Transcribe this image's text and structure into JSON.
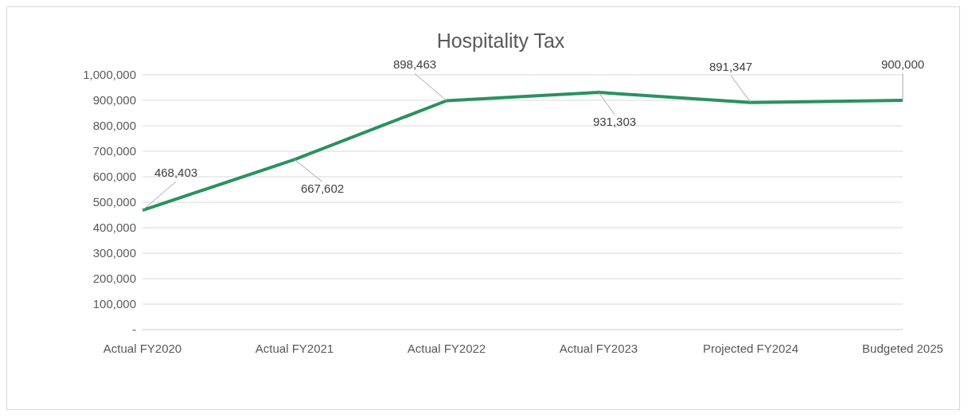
{
  "chart_data": {
    "type": "line",
    "title": "Hospitality Tax",
    "categories": [
      "Actual FY2020",
      "Actual FY2021",
      "Actual FY2022",
      "Actual FY2023",
      "Projected FY2024",
      "Budgeted 2025"
    ],
    "series": [
      {
        "color": "#2a9160",
        "values": [
          468403,
          667602,
          898463,
          931303,
          891347,
          900000
        ],
        "value_labels": [
          "468,403",
          "667,602",
          "898,463",
          "931,303",
          "891,347",
          "900,000"
        ]
      }
    ],
    "ylim": [
      0,
      1000000
    ],
    "yticks": [
      {
        "value": 0,
        "label": "-"
      },
      {
        "value": 100000,
        "label": "100,000"
      },
      {
        "value": 200000,
        "label": "200,000"
      },
      {
        "value": 300000,
        "label": "300,000"
      },
      {
        "value": 400000,
        "label": "400,000"
      },
      {
        "value": 500000,
        "label": "500,000"
      },
      {
        "value": 600000,
        "label": "600,000"
      },
      {
        "value": 700000,
        "label": "700,000"
      },
      {
        "value": 800000,
        "label": "800,000"
      },
      {
        "value": 900000,
        "label": "900,000"
      },
      {
        "value": 1000000,
        "label": "1,000,000"
      }
    ],
    "grid": "y",
    "legend": false,
    "marker": "none",
    "line_style": "solid"
  }
}
